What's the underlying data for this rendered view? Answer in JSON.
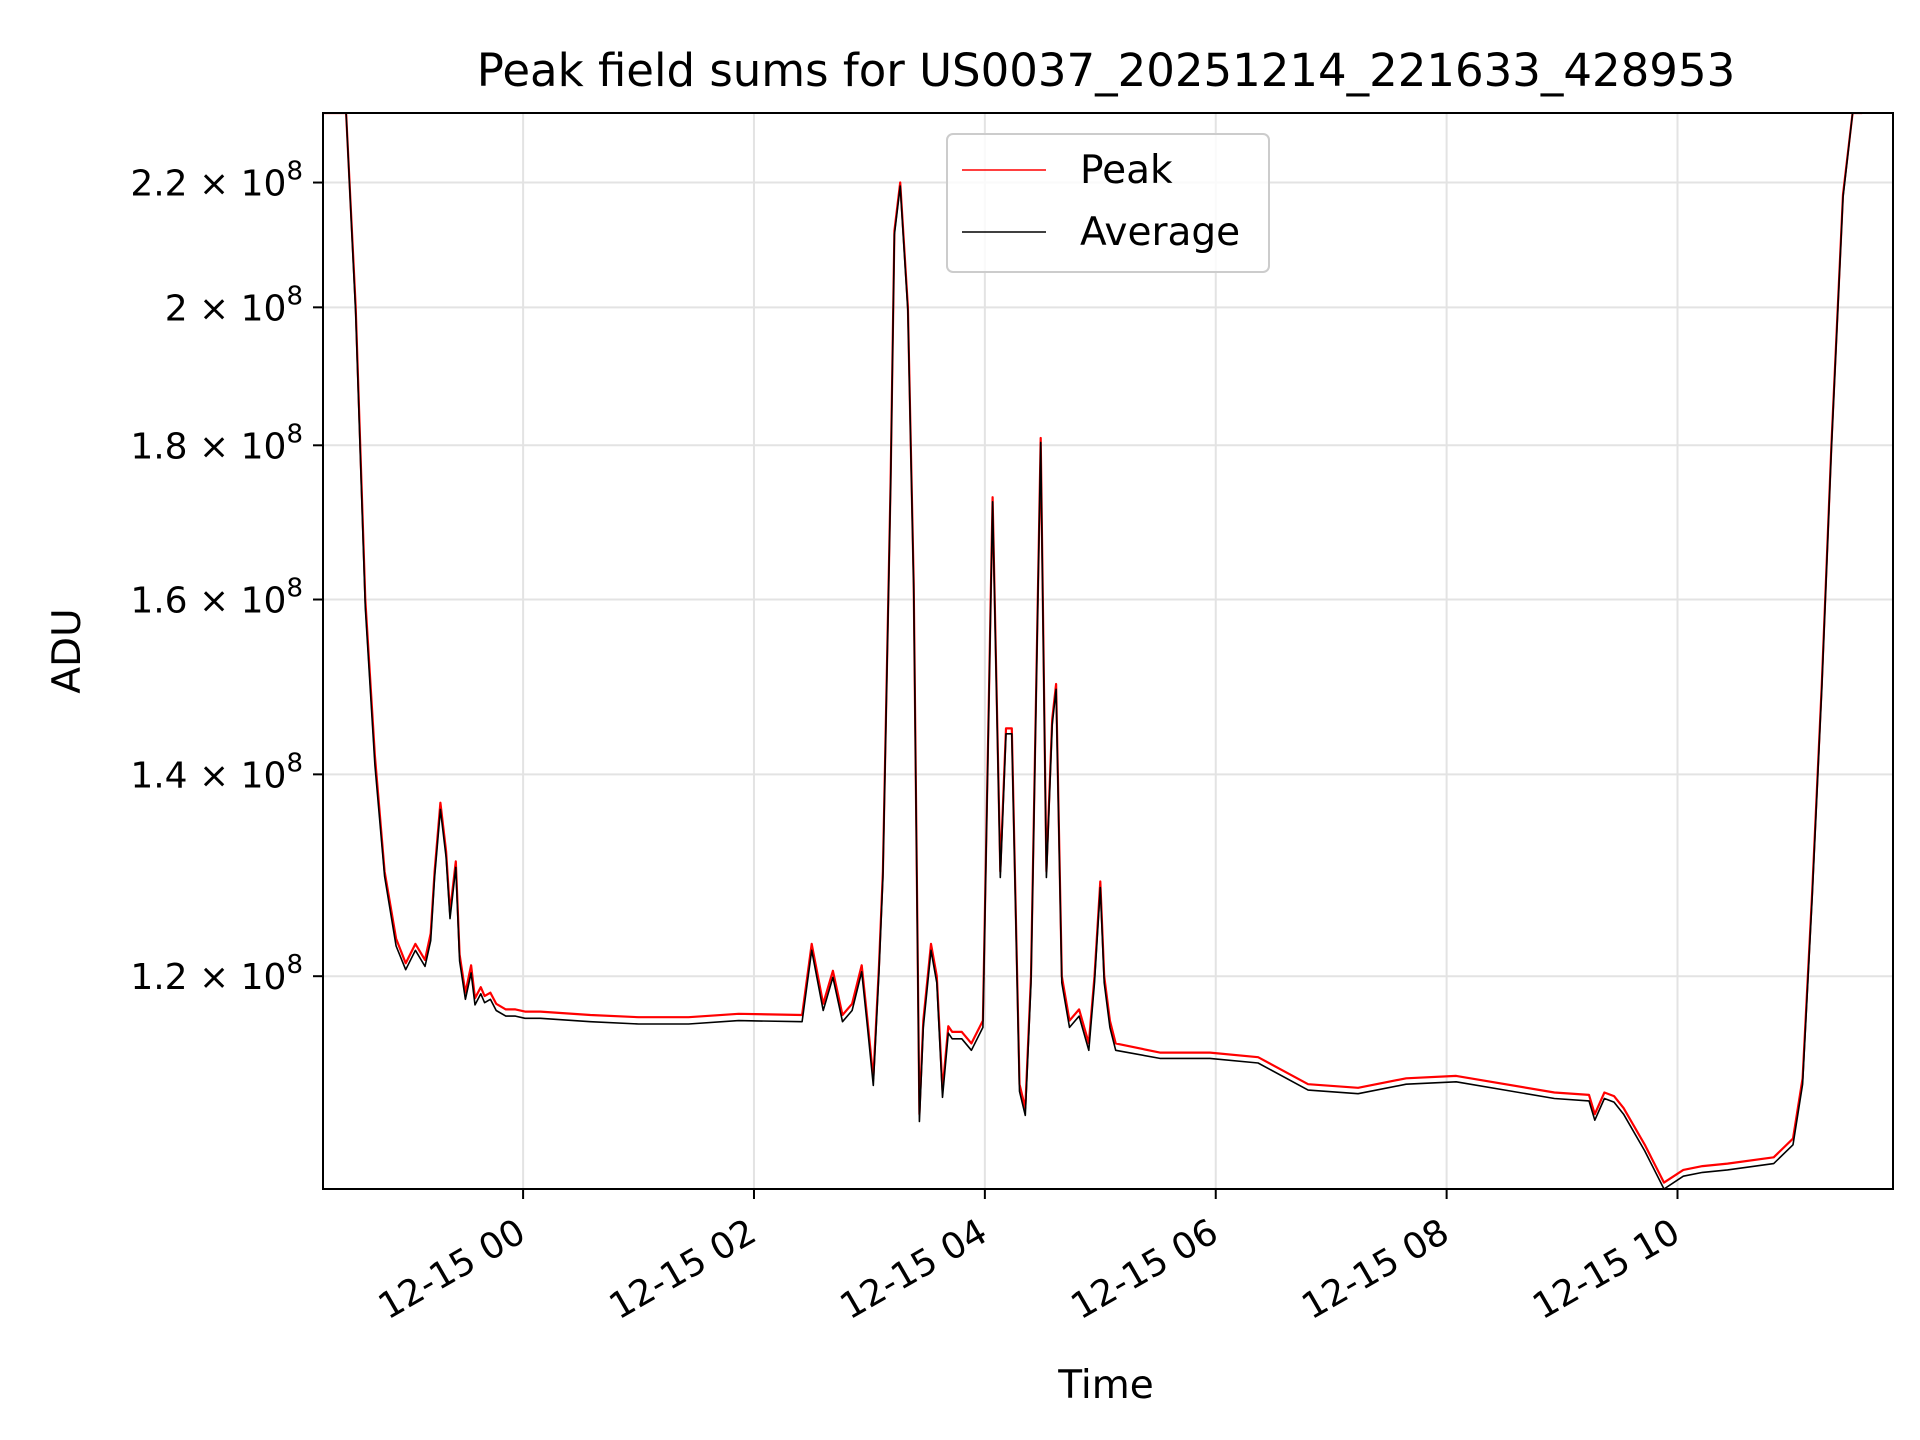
{
  "chart_data": {
    "type": "line",
    "title": "Peak field sums for US0037_20251214_221633_428953",
    "xlabel": "Time",
    "ylabel": "ADU",
    "y_scale": "log",
    "ylim": [
      102000000,
      232000000
    ],
    "xlim": [
      "2025-12-14 22:16",
      "2025-12-15 11:52"
    ],
    "grid": true,
    "legend_position": "top-center",
    "x_ticks": [
      "12-15 00",
      "12-15 02",
      "12-15 04",
      "12-15 06",
      "12-15 08",
      "12-15 10"
    ],
    "x_tick_times": [
      "2025-12-15 00:00",
      "2025-12-15 02:00",
      "2025-12-15 04:00",
      "2025-12-15 06:00",
      "2025-12-15 08:00",
      "2025-12-15 10:00"
    ],
    "y_ticks": [
      {
        "mantissa": "1.2",
        "value": 120000000
      },
      {
        "mantissa": "1.4",
        "value": 140000000
      },
      {
        "mantissa": "1.6",
        "value": 160000000
      },
      {
        "mantissa": "1.8",
        "value": 180000000
      },
      {
        "mantissa": "2",
        "value": 200000000
      },
      {
        "mantissa": "2.2",
        "value": 220000000
      }
    ],
    "y_tick_times": "×",
    "y_tick_base": "10",
    "y_tick_exp": "8",
    "series": [
      {
        "name": "Peak",
        "color": "#ff0000"
      },
      {
        "name": "Average",
        "color": "#000000"
      }
    ],
    "time": [
      "2025-12-14 22:16",
      "2025-12-14 22:28",
      "2025-12-14 22:33",
      "2025-12-14 22:38",
      "2025-12-14 22:43",
      "2025-12-14 22:48",
      "2025-12-14 22:54",
      "2025-12-14 22:59",
      "2025-12-14 23:04",
      "2025-12-14 23:09",
      "2025-12-14 23:12",
      "2025-12-14 23:14",
      "2025-12-14 23:17",
      "2025-12-14 23:20",
      "2025-12-14 23:22",
      "2025-12-14 23:25",
      "2025-12-14 23:27",
      "2025-12-14 23:30",
      "2025-12-14 23:33",
      "2025-12-14 23:35",
      "2025-12-14 23:38",
      "2025-12-14 23:40",
      "2025-12-14 23:43",
      "2025-12-14 23:46",
      "2025-12-14 23:51",
      "2025-12-14 23:56",
      "2025-12-15 00:01",
      "2025-12-15 00:09",
      "2025-12-15 00:35",
      "2025-12-15 01:00",
      "2025-12-15 01:26",
      "2025-12-15 01:52",
      "2025-12-15 02:25",
      "2025-12-15 02:30",
      "2025-12-15 02:36",
      "2025-12-15 02:41",
      "2025-12-15 02:46",
      "2025-12-15 02:51",
      "2025-12-15 02:56",
      "2025-12-15 02:59",
      "2025-12-15 03:02",
      "2025-12-15 03:05",
      "2025-12-15 03:07",
      "2025-12-15 03:11",
      "2025-12-15 03:13",
      "2025-12-15 03:16",
      "2025-12-15 03:20",
      "2025-12-15 03:23",
      "2025-12-15 03:26",
      "2025-12-15 03:28",
      "2025-12-15 03:32",
      "2025-12-15 03:35",
      "2025-12-15 03:38",
      "2025-12-15 03:41",
      "2025-12-15 03:43",
      "2025-12-15 03:48",
      "2025-12-15 03:53",
      "2025-12-15 03:59",
      "2025-12-15 04:04",
      "2025-12-15 04:08",
      "2025-12-15 04:11",
      "2025-12-15 04:14",
      "2025-12-15 04:18",
      "2025-12-15 04:21",
      "2025-12-15 04:24",
      "2025-12-15 04:29",
      "2025-12-15 04:32",
      "2025-12-15 04:35",
      "2025-12-15 04:37",
      "2025-12-15 04:40",
      "2025-12-15 04:44",
      "2025-12-15 04:49",
      "2025-12-15 04:54",
      "2025-12-15 04:57",
      "2025-12-15 05:00",
      "2025-12-15 05:02",
      "2025-12-15 05:05",
      "2025-12-15 05:08",
      "2025-12-15 05:31",
      "2025-12-15 05:57",
      "2025-12-15 06:22",
      "2025-12-15 06:48",
      "2025-12-15 07:14",
      "2025-12-15 07:39",
      "2025-12-15 08:05",
      "2025-12-15 08:56",
      "2025-12-15 09:14",
      "2025-12-15 09:17",
      "2025-12-15 09:22",
      "2025-12-15 09:27",
      "2025-12-15 09:32",
      "2025-12-15 09:43",
      "2025-12-15 09:53",
      "2025-12-15 10:03",
      "2025-12-15 10:13",
      "2025-12-15 10:26",
      "2025-12-15 10:50",
      "2025-12-15 11:00",
      "2025-12-15 11:05",
      "2025-12-15 11:10",
      "2025-12-15 11:15",
      "2025-12-15 11:20",
      "2025-12-15 11:26",
      "2025-12-15 11:31",
      "2025-12-15 11:36",
      "2025-12-15 11:41",
      "2025-12-15 11:52"
    ],
    "peak": [
      232000000,
      232000000,
      200000000,
      160000000,
      142000000,
      130000000,
      123500000,
      121200000,
      123000000,
      121500000,
      124000000,
      130000000,
      137000000,
      132000000,
      126000000,
      131000000,
      122000000,
      118500000,
      121000000,
      118000000,
      119000000,
      118200000,
      118500000,
      117500000,
      117000000,
      117000000,
      116800000,
      116800000,
      116500000,
      116300000,
      116300000,
      116600000,
      116500000,
      123000000,
      117500000,
      120500000,
      116500000,
      117500000,
      121000000,
      116000000,
      111000000,
      121000000,
      130000000,
      175000000,
      212000000,
      220000000,
      200000000,
      162000000,
      108000000,
      116000000,
      123000000,
      120000000,
      110000000,
      115500000,
      115000000,
      115000000,
      114000000,
      116000000,
      173000000,
      130000000,
      145000000,
      145000000,
      110500000,
      108500000,
      120000000,
      181000000,
      130000000,
      146000000,
      150000000,
      120000000,
      116000000,
      117000000,
      114000000,
      120000000,
      129000000,
      120000000,
      116000000,
      114000000,
      113200000,
      113200000,
      112800000,
      110500000,
      110200000,
      111000000,
      111200000,
      109800000,
      109600000,
      108000000,
      109800000,
      109500000,
      108500000,
      105500000,
      102500000,
      103500000,
      103800000,
      104000000,
      104500000,
      106000000,
      111000000,
      128000000,
      150000000,
      180000000,
      218000000,
      232000000,
      232000000
    ],
    "average": [
      232000000,
      232000000,
      199000000,
      159000000,
      141000000,
      129500000,
      122800000,
      120600000,
      122400000,
      120900000,
      123300000,
      129400000,
      136300000,
      131400000,
      125400000,
      130400000,
      121400000,
      117900000,
      120300000,
      117400000,
      118400000,
      117600000,
      117900000,
      116900000,
      116400000,
      116400000,
      116200000,
      116200000,
      115900000,
      115700000,
      115700000,
      116000000,
      115900000,
      122400000,
      116900000,
      119900000,
      115900000,
      116900000,
      120400000,
      115400000,
      110400000,
      120400000,
      129400000,
      174400000,
      211400000,
      219400000,
      199400000,
      161400000,
      107400000,
      115400000,
      122400000,
      119400000,
      109400000,
      114900000,
      114400000,
      114400000,
      113400000,
      115400000,
      172400000,
      129400000,
      144400000,
      144400000,
      109900000,
      107900000,
      119400000,
      180400000,
      129400000,
      145400000,
      149400000,
      119400000,
      115400000,
      116400000,
      113400000,
      119400000,
      128400000,
      119400000,
      115400000,
      113400000,
      112700000,
      112700000,
      112300000,
      110000000,
      109700000,
      110500000,
      110700000,
      109300000,
      109100000,
      107500000,
      109300000,
      109000000,
      108000000,
      105000000,
      102000000,
      103000000,
      103300000,
      103500000,
      104000000,
      105500000,
      110500000,
      127500000,
      149500000,
      179500000,
      217500000,
      232000000,
      232000000
    ]
  }
}
